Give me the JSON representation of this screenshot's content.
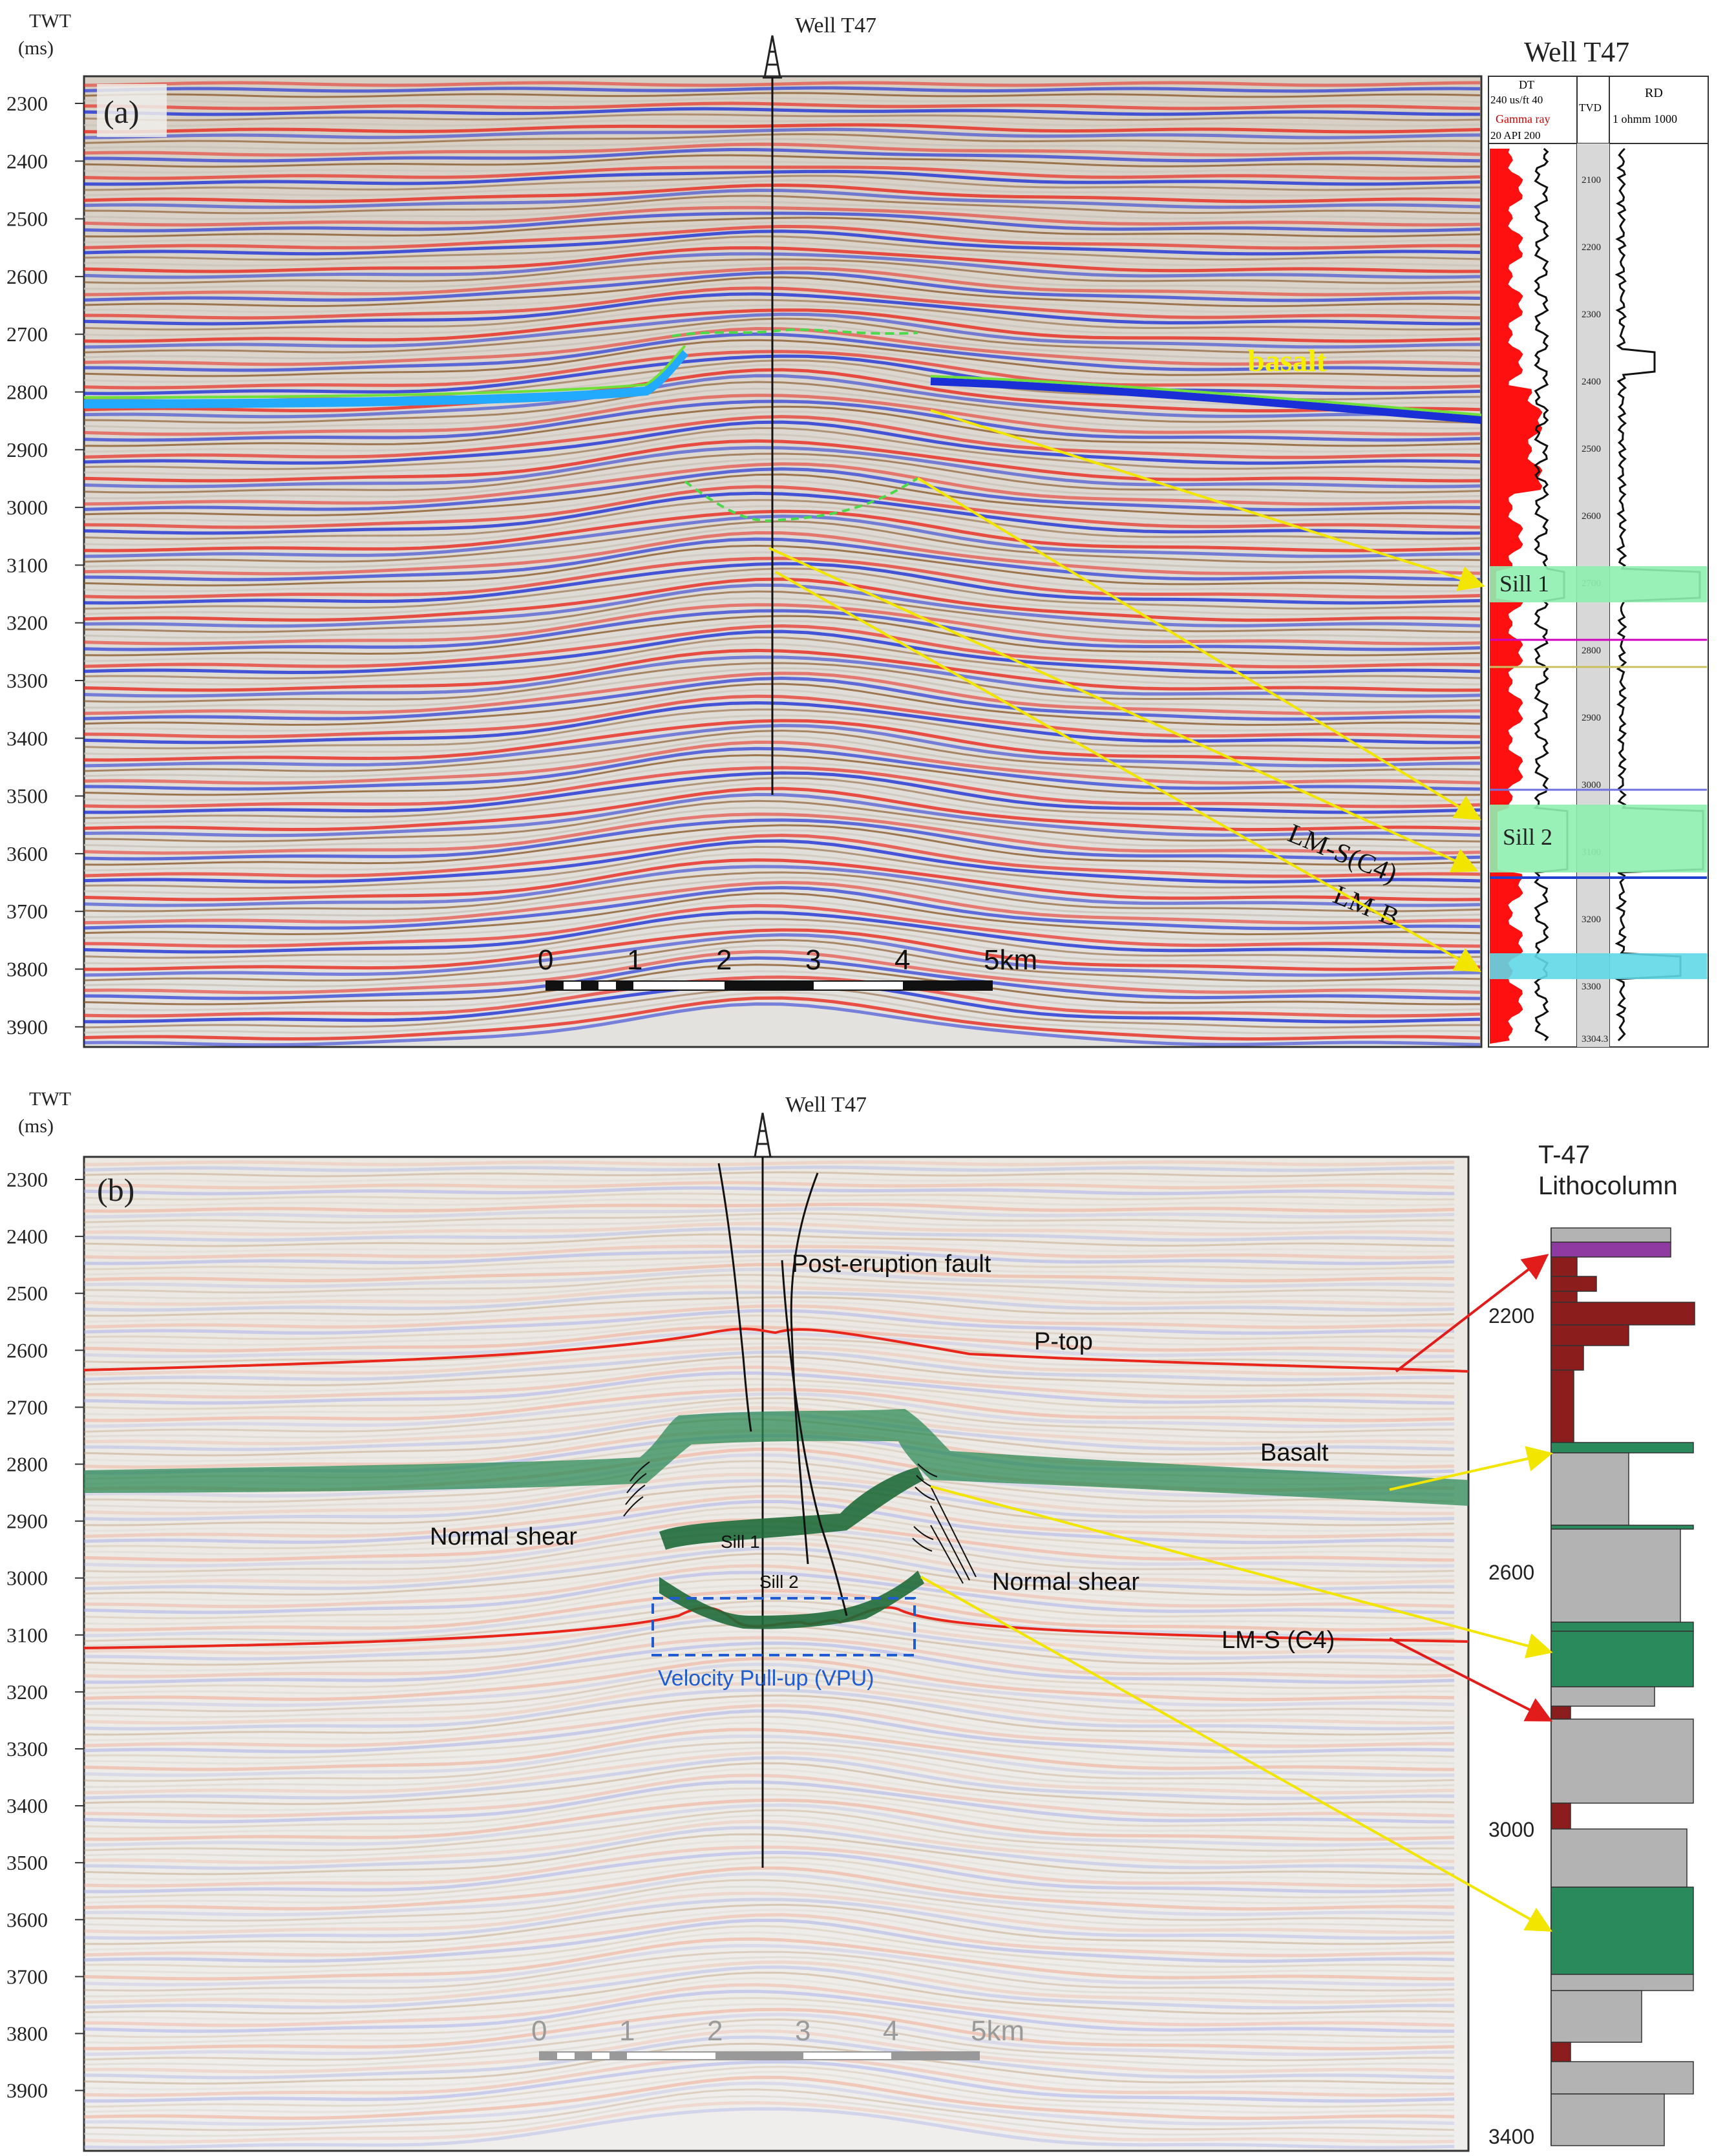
{
  "panel_a": {
    "panel_label": "(a)",
    "axis_title_line1": "TWT",
    "axis_title_line2": "(ms)",
    "ticks": [
      "2300",
      "2400",
      "2500",
      "2600",
      "2700",
      "2800",
      "2900",
      "3000",
      "3100",
      "3200",
      "3300",
      "3400",
      "3500",
      "3600",
      "3700",
      "3800",
      "3900"
    ],
    "well_label": "Well T47",
    "well_log_title": "Well T47",
    "log_headers": {
      "dt": "DT",
      "dt_range": "240  us/ft  40",
      "gamma": "Gamma ray",
      "gamma_range": "20  API  200",
      "tvd": "TVD",
      "rd": "RD",
      "rd_range": "1  ohmm  1000"
    },
    "depth_ticks": [
      "2100",
      "2200",
      "2300",
      "2400",
      "2500",
      "2600",
      "2700",
      "2800",
      "2900",
      "3000",
      "3100",
      "3200",
      "3300",
      "3304.3"
    ],
    "labels": {
      "basalt": "basalt",
      "sill1": "Sill 1",
      "sill2": "Sill 2",
      "lms": "LM-S(C4)",
      "lmb": "LM-B"
    },
    "scale_labels": [
      "0",
      "1",
      "2",
      "3",
      "4",
      "5km"
    ]
  },
  "panel_b": {
    "panel_label": "(b)",
    "axis_title_line1": "TWT",
    "axis_title_line2": "(ms)",
    "ticks": [
      "2300",
      "2400",
      "2500",
      "2600",
      "2700",
      "2800",
      "2900",
      "3000",
      "3100",
      "3200",
      "3300",
      "3400",
      "3500",
      "3600",
      "3700",
      "3800",
      "3900"
    ],
    "well_label": "Well T47",
    "litho_title_line1": "T-47",
    "litho_title_line2": "Lithocolumn",
    "litho_ticks": [
      "2200",
      "2600",
      "3000",
      "3400"
    ],
    "labels": {
      "post_eruption_fault": "Post-eruption fault",
      "p_top": "P-top",
      "basalt": "Basalt",
      "normal_shear_left": "Normal shear",
      "normal_shear_right": "Normal shear",
      "sill1": "Sill 1",
      "sill2": "Sill 2",
      "lms": "LM-S (C4)",
      "vpu": "Velocity Pull-up (VPU)"
    },
    "scale_labels": [
      "0",
      "1",
      "2",
      "3",
      "4",
      "5km"
    ]
  },
  "colors": {
    "seismic_red": "#e8261b",
    "seismic_blue": "#1b2fd6",
    "seismic_brown": "#8a5a2b",
    "basalt_green": "#2e8b57",
    "sill_green": "#2f7d48",
    "arrow_yellow": "#f2e600",
    "arrow_red": "#e21b1b",
    "vpu_blue": "#1f5bd1",
    "litho_red": "#8b1d1d",
    "litho_green": "#2a8a5c",
    "litho_gray": "#b3b3b3",
    "litho_purple": "#8e3aa0"
  }
}
